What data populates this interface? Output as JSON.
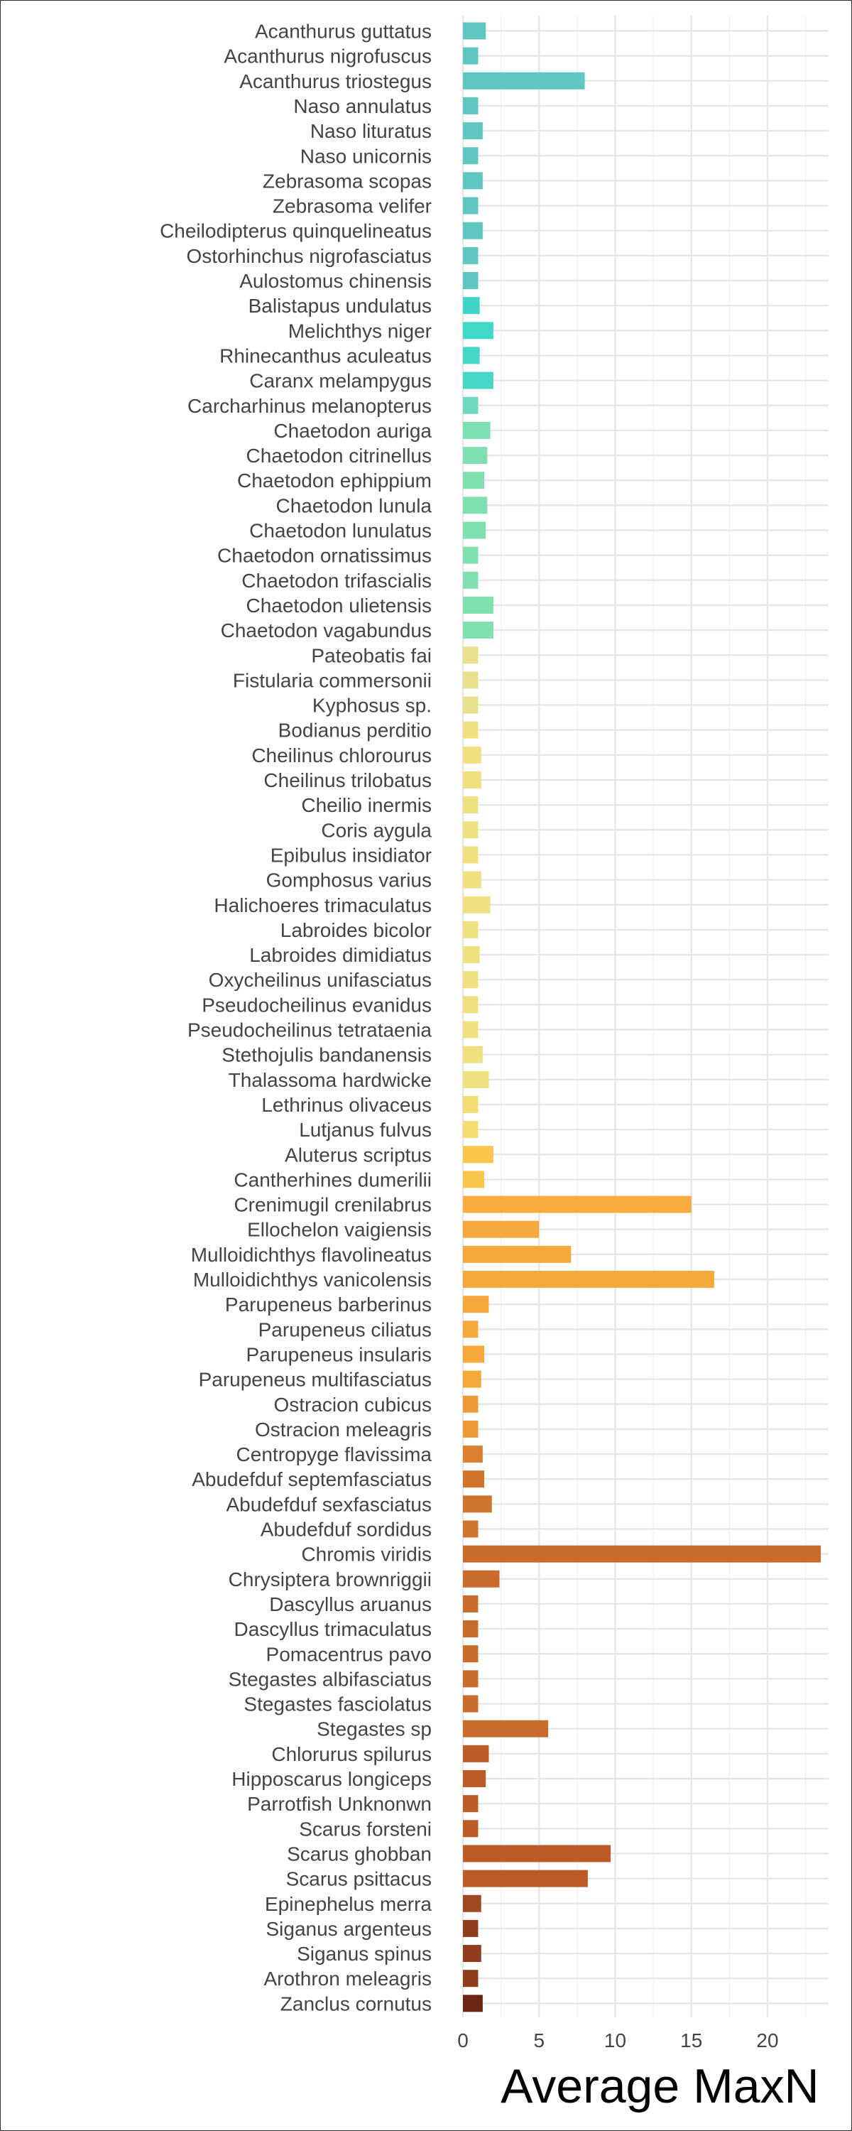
{
  "chart_data": {
    "type": "bar",
    "orientation": "horizontal",
    "xlabel": "Average MaxN",
    "ylabel": "",
    "xlim": [
      0,
      24
    ],
    "xticks": [
      0,
      5,
      10,
      15,
      20
    ],
    "grid": true,
    "legend": "none",
    "categories": [
      "Acanthurus guttatus",
      "Acanthurus nigrofuscus",
      "Acanthurus triostegus",
      "Naso annulatus",
      "Naso lituratus",
      "Naso unicornis",
      "Zebrasoma scopas",
      "Zebrasoma velifer",
      "Cheilodipterus quinquelineatus",
      "Ostorhinchus nigrofasciatus",
      "Aulostomus chinensis",
      "Balistapus undulatus",
      "Melichthys niger",
      "Rhinecanthus aculeatus",
      "Caranx melampygus",
      "Carcharhinus melanopterus",
      "Chaetodon auriga",
      "Chaetodon citrinellus",
      "Chaetodon ephippium",
      "Chaetodon lunula",
      "Chaetodon lunulatus",
      "Chaetodon ornatissimus",
      "Chaetodon trifascialis",
      "Chaetodon ulietensis",
      "Chaetodon vagabundus",
      "Pateobatis fai",
      "Fistularia commersonii",
      "Kyphosus sp.",
      "Bodianus perditio",
      "Cheilinus chlorourus",
      "Cheilinus trilobatus",
      "Cheilio inermis",
      "Coris aygula",
      "Epibulus insidiator",
      "Gomphosus varius",
      "Halichoeres trimaculatus",
      "Labroides bicolor",
      "Labroides dimidiatus",
      "Oxycheilinus unifasciatus",
      "Pseudocheilinus evanidus",
      "Pseudocheilinus tetrataenia",
      "Stethojulis bandanensis",
      "Thalassoma hardwicke",
      "Lethrinus olivaceus",
      "Lutjanus fulvus",
      "Aluterus scriptus",
      "Cantherhines dumerilii",
      "Crenimugil crenilabrus",
      "Ellochelon vaigiensis",
      "Mulloidichthys flavolineatus",
      "Mulloidichthys vanicolensis",
      "Parupeneus barberinus",
      "Parupeneus ciliatus",
      "Parupeneus insularis",
      "Parupeneus multifasciatus",
      "Ostracion cubicus",
      "Ostracion meleagris",
      "Centropyge flavissima",
      "Abudefduf septemfasciatus",
      "Abudefduf sexfasciatus",
      "Abudefduf sordidus",
      "Chromis viridis",
      "Chrysiptera brownriggii",
      "Dascyllus aruanus",
      "Dascyllus trimaculatus",
      "Pomacentrus pavo",
      "Stegastes albifasciatus",
      "Stegastes fasciolatus",
      "Stegastes sp",
      "Chlorurus spilurus",
      "Hipposcarus longiceps",
      "Parrotfish Unknonwn",
      "Scarus forsteni",
      "Scarus ghobban",
      "Scarus psittacus",
      "Epinephelus merra",
      "Siganus argenteus",
      "Siganus spinus",
      "Arothron meleagris",
      "Zanclus cornutus"
    ],
    "values": [
      1.5,
      1.0,
      8.0,
      1.0,
      1.3,
      1.0,
      1.3,
      1.0,
      1.3,
      1.0,
      1.0,
      1.1,
      2.0,
      1.1,
      2.0,
      1.0,
      1.8,
      1.6,
      1.4,
      1.6,
      1.5,
      1.0,
      1.0,
      2.0,
      2.0,
      1.0,
      1.0,
      1.0,
      1.0,
      1.2,
      1.2,
      1.0,
      1.0,
      1.0,
      1.2,
      1.8,
      1.0,
      1.1,
      1.0,
      1.0,
      1.0,
      1.3,
      1.7,
      1.0,
      1.0,
      2.0,
      1.4,
      15.0,
      5.0,
      7.1,
      16.5,
      1.7,
      1.0,
      1.4,
      1.2,
      1.0,
      1.0,
      1.3,
      1.4,
      1.9,
      1.0,
      23.5,
      2.4,
      1.0,
      1.0,
      1.0,
      1.0,
      1.0,
      5.6,
      1.7,
      1.5,
      1.0,
      1.0,
      9.7,
      8.2,
      1.2,
      1.0,
      1.2,
      1.0,
      1.3
    ],
    "colors": [
      "#5ec8c0",
      "#5ec8c0",
      "#5ec8c0",
      "#5ec8c0",
      "#5ec8c0",
      "#5ec8c0",
      "#5ec8c0",
      "#5ec8c0",
      "#5ec8c0",
      "#5ec8c0",
      "#5ec8c0",
      "#40d4c8",
      "#40d9c9",
      "#45d6c6",
      "#45d6c6",
      "#6ed8c0",
      "#7ee0b0",
      "#7ee0b0",
      "#80e0b0",
      "#80e0b0",
      "#80e0b0",
      "#80e0b0",
      "#80e0b0",
      "#80e0b0",
      "#80e0b0",
      "#e8e08c",
      "#e8e08c",
      "#e8e08c",
      "#efe080",
      "#efe080",
      "#efe080",
      "#efe080",
      "#efe080",
      "#efe080",
      "#efe080",
      "#efe080",
      "#efe080",
      "#efe080",
      "#efe080",
      "#efe080",
      "#efe080",
      "#efe080",
      "#efe080",
      "#f5dc70",
      "#f5dc70",
      "#fbc64c",
      "#fbc64c",
      "#f8ac40",
      "#f5a83c",
      "#f5a83c",
      "#f5a83c",
      "#f5a83c",
      "#f5a83c",
      "#f5a83c",
      "#f5a83c",
      "#eb9a38",
      "#eb9a38",
      "#dc8030",
      "#d0732d",
      "#d0732d",
      "#d0732d",
      "#c86b2c",
      "#c86b2c",
      "#c86b2c",
      "#c86b2c",
      "#c86b2c",
      "#c86b2c",
      "#c86b2c",
      "#c86b2c",
      "#bc5a28",
      "#bc5a28",
      "#bc5a28",
      "#bc5a28",
      "#bc5a28",
      "#bc5a28",
      "#a04a22",
      "#8e3c1c",
      "#8e3c1c",
      "#8e3c1c",
      "#6a2612"
    ]
  }
}
